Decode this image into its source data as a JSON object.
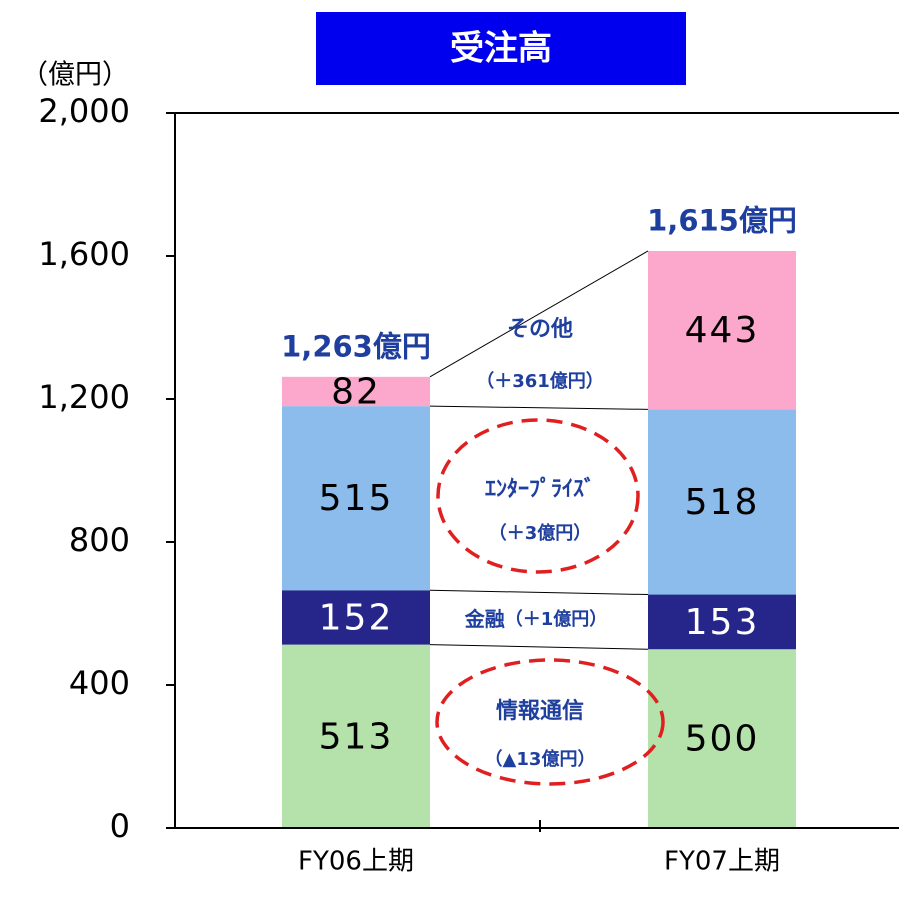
{
  "chart_data": {
    "type": "bar",
    "stacked": true,
    "title": "受注高",
    "y_unit_label": "（億円）",
    "categories": [
      "FY06上期",
      "FY07上期"
    ],
    "series": [
      {
        "name": "情報通信",
        "change": "（▲13億円）",
        "color": "#b4e2aa",
        "label_color": "#000000",
        "values": [
          513,
          500
        ]
      },
      {
        "name": "金融",
        "change": "（＋1億円）",
        "color": "#25258a",
        "label_color": "#ffffff",
        "values": [
          152,
          153
        ]
      },
      {
        "name": "ｴﾝﾀｰﾌﾟﾗｲｽﾞ",
        "change": "（＋3億円）",
        "color": "#8cbcec",
        "label_color": "#000000",
        "values": [
          515,
          518
        ]
      },
      {
        "name": "その他",
        "change": "（＋361億円）",
        "color": "#fba8cc",
        "label_color": "#000000",
        "values": [
          82,
          443
        ]
      }
    ],
    "totals": [
      1263,
      1615
    ],
    "total_labels": [
      "1,263億円",
      "1,615億円"
    ],
    "ylim": [
      0,
      2000
    ],
    "yticks": [
      0,
      400,
      800,
      {
        "value": 1200,
        "label": "1,200"
      },
      {
        "value": 1600,
        "label": "1,600"
      },
      {
        "value": 2000,
        "label": "2,000"
      }
    ]
  }
}
